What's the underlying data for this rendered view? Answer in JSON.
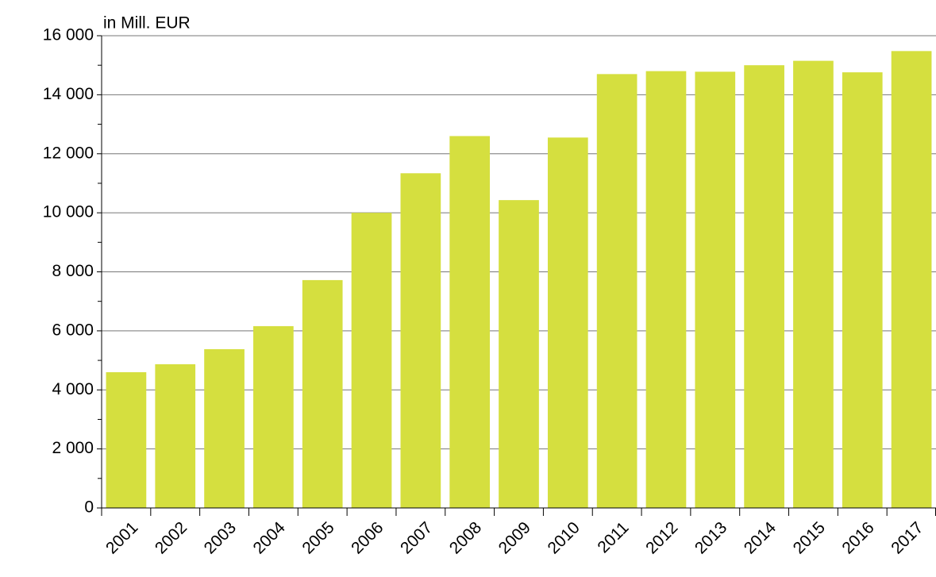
{
  "chart_data": {
    "type": "bar",
    "y_unit_label": "in Mill. EUR",
    "categories": [
      "2001",
      "2002",
      "2003",
      "2004",
      "2005",
      "2006",
      "2007",
      "2008",
      "2009",
      "2010",
      "2011",
      "2012",
      "2013",
      "2014",
      "2015",
      "2016",
      "2017"
    ],
    "values": [
      4600,
      4870,
      5380,
      6160,
      7720,
      10000,
      11340,
      12600,
      10430,
      12550,
      14700,
      14800,
      14780,
      15000,
      15150,
      14760,
      15480
    ],
    "color": "#d5df3f",
    "ylim": [
      0,
      16000
    ],
    "yticks": [
      0,
      {
        "value": 2000,
        "label": "2 000"
      },
      {
        "value": 4000,
        "label": "4 000"
      },
      {
        "value": 6000,
        "label": "6 000"
      },
      {
        "value": 8000,
        "label": "8 000"
      },
      {
        "value": 10000,
        "label": "10 000"
      },
      {
        "value": 12000,
        "label": "12 000"
      },
      {
        "value": 14000,
        "label": "14 000"
      },
      {
        "value": 16000,
        "label": "16 000"
      }
    ],
    "minor_yticks": [
      1000,
      3000,
      5000,
      7000,
      9000,
      11000,
      13000,
      15000
    ],
    "grid": true
  }
}
